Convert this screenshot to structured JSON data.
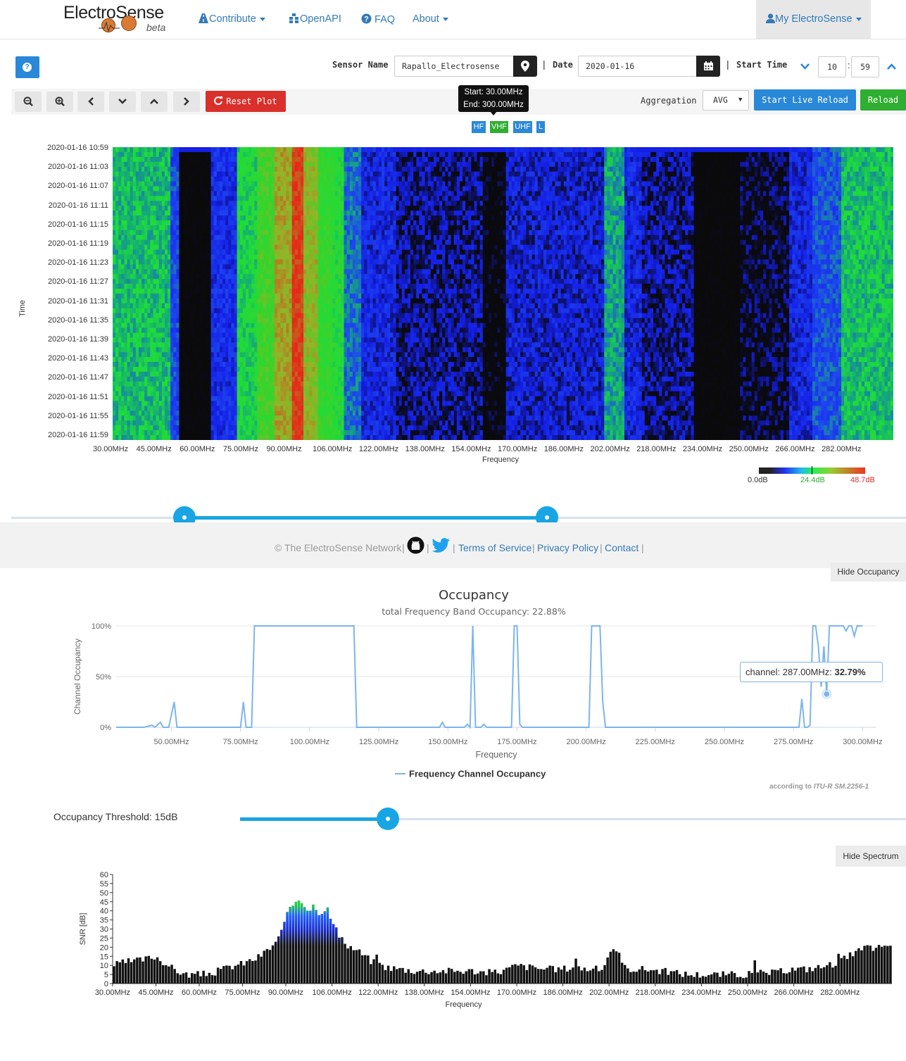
{
  "navbar": {
    "brand": "ElectroSense",
    "brand_sub": "beta",
    "links": [
      {
        "label": "Contribute",
        "dropdown": true
      },
      {
        "label": "OpenAPI",
        "dropdown": false
      },
      {
        "label": "FAQ",
        "dropdown": false
      },
      {
        "label": "About",
        "dropdown": true
      }
    ],
    "account_label": "My ElectroSense"
  },
  "controls": {
    "help_icon": "question-circle-icon",
    "sensor_name_label": "Sensor Name",
    "sensor_name_value": "Rapallo_Electrosense",
    "date_label": "Date",
    "date_value": "2020-01-16",
    "start_time_label": "Start Time",
    "start_time_hour": "10",
    "start_time_minute": "59",
    "time_sep": ":",
    "reset_label": "Reset Plot",
    "aggregation_label": "Aggregation",
    "aggregation_value": "AVG",
    "live_reload_label": "Start Live Reload",
    "reload_label": "Reload"
  },
  "range_tooltip": {
    "start": "Start: 30.00MHz",
    "end": "End: 300.00MHz"
  },
  "bands": [
    "HF",
    "VHF",
    "UHF",
    "L"
  ],
  "colors": {
    "primary": "#2a88d8",
    "danger": "#d9302b",
    "success": "#2fae31",
    "slider": "#19a5e3",
    "link": "#337ab7",
    "occupancy_line": "#7cb5ec"
  },
  "waterfall": {
    "y_label": "Time",
    "x_label": "Frequency",
    "time_ticks": [
      "2020-01-16 10:59",
      "2020-01-16 11:03",
      "2020-01-16 11:07",
      "2020-01-16 11:11",
      "2020-01-16 11:15",
      "2020-01-16 11:19",
      "2020-01-16 11:23",
      "2020-01-16 11:27",
      "2020-01-16 11:31",
      "2020-01-16 11:35",
      "2020-01-16 11:39",
      "2020-01-16 11:43",
      "2020-01-16 11:47",
      "2020-01-16 11:51",
      "2020-01-16 11:55",
      "2020-01-16 11:59"
    ],
    "freq_ticks": [
      "30.00MHz",
      "45.00MHz",
      "60.00MHz",
      "75.00MHz",
      "90.00MHz",
      "106.00MHz",
      "122.00MHz",
      "138.00MHz",
      "154.00MHz",
      "170.00MHz",
      "186.00MHz",
      "202.00MHz",
      "218.00MHz",
      "234.00MHz",
      "250.00MHz",
      "266.00MHz",
      "282.00MHz"
    ],
    "colorbar": {
      "min": "0.0dB",
      "mid": "24.4dB",
      "max": "48.7dB"
    }
  },
  "footer": {
    "copyright": "© The ElectroSense Network",
    "sep": "|",
    "github_icon": "github-icon",
    "twitter_icon": "twitter-icon",
    "links": [
      "Terms of Service",
      "Privacy Policy",
      "Contact"
    ]
  },
  "occupancy": {
    "hide_label": "Hide Occupancy",
    "tooltip_prefix": "channel: 287.00MHz: ",
    "tooltip_value": "32.79%",
    "credit_prefix": "according to ",
    "credit_ref": "ITU-R SM.2256-1",
    "threshold_label": "Occupancy Threshold: 15dB"
  },
  "spectrum": {
    "hide_label": "Hide Spectrum"
  },
  "chart_data": [
    {
      "type": "heatmap",
      "title": "",
      "xlabel": "Frequency",
      "ylabel": "Time",
      "x_range_mhz": [
        30,
        300
      ],
      "color_scale": [
        {
          "value": 0.0,
          "label": "0.0dB",
          "color": "#000000"
        },
        {
          "value": 24.4,
          "label": "24.4dB",
          "color": "#22cc22"
        },
        {
          "value": 48.7,
          "label": "48.7dB",
          "color": "#e02020"
        }
      ],
      "profile": [
        {
          "from": 30,
          "to": 50,
          "level": 22
        },
        {
          "from": 50,
          "to": 53,
          "level": 14
        },
        {
          "from": 53,
          "to": 64,
          "level": 1
        },
        {
          "from": 64,
          "to": 73,
          "level": 11
        },
        {
          "from": 73,
          "to": 80,
          "level": 24
        },
        {
          "from": 80,
          "to": 86,
          "level": 30
        },
        {
          "from": 86,
          "to": 92,
          "level": 38
        },
        {
          "from": 92,
          "to": 96,
          "level": 47
        },
        {
          "from": 96,
          "to": 101,
          "level": 36
        },
        {
          "from": 101,
          "to": 106,
          "level": 28
        },
        {
          "from": 106,
          "to": 110,
          "level": 26
        },
        {
          "from": 110,
          "to": 116,
          "level": 17
        },
        {
          "from": 116,
          "to": 128,
          "level": 10
        },
        {
          "from": 128,
          "to": 158,
          "level": 7
        },
        {
          "from": 158,
          "to": 166,
          "level": 3
        },
        {
          "from": 166,
          "to": 200,
          "level": 9
        },
        {
          "from": 200,
          "to": 207,
          "level": 20
        },
        {
          "from": 207,
          "to": 213,
          "level": 10
        },
        {
          "from": 213,
          "to": 231,
          "level": 7
        },
        {
          "from": 231,
          "to": 247,
          "level": 1
        },
        {
          "from": 247,
          "to": 264,
          "level": 5
        },
        {
          "from": 264,
          "to": 272,
          "level": 10
        },
        {
          "from": 272,
          "to": 282,
          "level": 15
        },
        {
          "from": 282,
          "to": 300,
          "level": 22
        }
      ]
    },
    {
      "type": "line",
      "title": "Occupancy",
      "subtitle": "total Frequency Band Occupancy: 22.88%",
      "xlabel": "Frequency",
      "ylabel": "Channel Occupancy",
      "xlim": [
        30,
        305
      ],
      "ylim": [
        0,
        100
      ],
      "x_ticks": [
        "50.00MHz",
        "75.00MHz",
        "100.00MHz",
        "125.00MHz",
        "150.00MHz",
        "175.00MHz",
        "200.00MHz",
        "225.00MHz",
        "250.00MHz",
        "275.00MHz",
        "300.00MHz"
      ],
      "y_ticks": [
        "100%",
        "50%",
        "0%"
      ],
      "legend": "bottom-center",
      "series": [
        {
          "name": "Frequency Channel Occupancy",
          "x": [
            30,
            40,
            43,
            44,
            46,
            47,
            48,
            49,
            51,
            52,
            53,
            54,
            55,
            75,
            76,
            77,
            78,
            79,
            80,
            81,
            83,
            84,
            85,
            86,
            87,
            115,
            116,
            117,
            118,
            119,
            120,
            121,
            122,
            123,
            124,
            125,
            147,
            148,
            149,
            150,
            151,
            152,
            156,
            157,
            158,
            159,
            160,
            161,
            162,
            163,
            164,
            165,
            172,
            173,
            174,
            175,
            176,
            177,
            178,
            200,
            201,
            202,
            203,
            204,
            205,
            206,
            207,
            275,
            276,
            277,
            278,
            279,
            280,
            281,
            282,
            283,
            284,
            285,
            286,
            287,
            288,
            289,
            290,
            291,
            292,
            293,
            294,
            295,
            296,
            297,
            298,
            299,
            300
          ],
          "y": [
            0,
            0,
            2,
            0,
            5,
            0,
            0,
            0,
            25,
            0,
            0,
            0,
            0,
            0,
            25,
            0,
            0,
            0,
            100,
            100,
            100,
            100,
            100,
            100,
            100,
            100,
            100,
            0,
            0,
            0,
            0,
            0,
            0,
            0,
            0,
            0,
            0,
            5,
            0,
            0,
            0,
            0,
            0,
            3,
            0,
            100,
            0,
            0,
            0,
            3,
            0,
            0,
            0,
            0,
            100,
            100,
            3,
            0,
            0,
            0,
            0,
            100,
            100,
            100,
            100,
            25,
            0,
            0,
            0,
            0,
            28,
            0,
            0,
            2,
            100,
            100,
            80,
            40,
            80,
            32.79,
            100,
            100,
            100,
            100,
            100,
            100,
            95,
            100,
            100,
            90,
            100,
            100,
            100
          ]
        }
      ],
      "highlight": {
        "x": 287,
        "y": 32.79
      }
    },
    {
      "type": "bar",
      "title": "",
      "xlabel": "Frequency",
      "ylabel": "SNR [dB]",
      "xlim": [
        30,
        300
      ],
      "ylim": [
        0,
        60
      ],
      "y_ticks": [
        0,
        5,
        10,
        15,
        20,
        25,
        30,
        35,
        40,
        45,
        50,
        55,
        60
      ],
      "x_ticks": [
        "30.00MHz",
        "45.00MHz",
        "60.00MHz",
        "75.00MHz",
        "90.00MHz",
        "106.00MHz",
        "122.00MHz",
        "138.00MHz",
        "154.00MHz",
        "170.00MHz",
        "186.00MHz",
        "202.00MHz",
        "218.00MHz",
        "234.00MHz",
        "250.00MHz",
        "266.00MHz",
        "282.00MHz"
      ],
      "x": [
        30,
        35,
        40,
        45,
        50,
        55,
        60,
        65,
        70,
        75,
        80,
        85,
        88,
        90,
        92,
        94,
        96,
        98,
        100,
        102,
        104,
        106,
        108,
        110,
        115,
        120,
        125,
        130,
        135,
        140,
        145,
        150,
        155,
        160,
        165,
        170,
        175,
        180,
        185,
        190,
        195,
        200,
        202,
        205,
        207,
        210,
        215,
        220,
        225,
        230,
        235,
        240,
        245,
        250,
        255,
        260,
        265,
        270,
        275,
        280,
        285,
        290,
        295,
        300
      ],
      "values": [
        10,
        12,
        13,
        15,
        9,
        5,
        5,
        6,
        9,
        11,
        14,
        20,
        26,
        36,
        42,
        47,
        45,
        40,
        44,
        38,
        43,
        34,
        28,
        22,
        18,
        12,
        9,
        8,
        7,
        7,
        7,
        7,
        7,
        6,
        7,
        10,
        9,
        8,
        8,
        9,
        8,
        8,
        18,
        17,
        9,
        8,
        8,
        7,
        6,
        5,
        5,
        5,
        5,
        5,
        6,
        6,
        8,
        8,
        9,
        11,
        15,
        19,
        20,
        20
      ]
    }
  ]
}
